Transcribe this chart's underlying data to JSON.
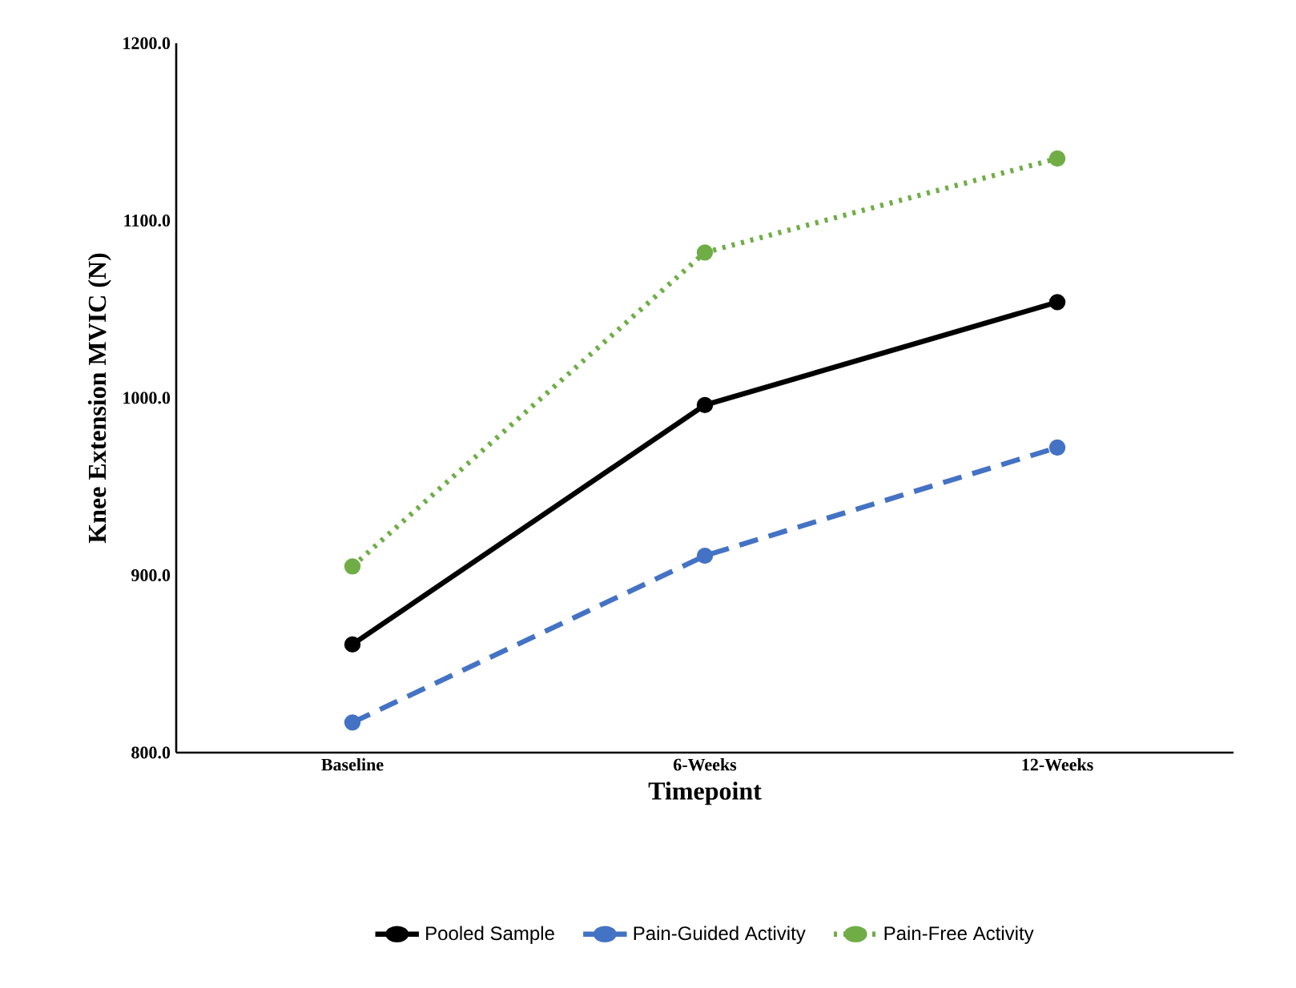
{
  "chart_data": {
    "type": "line",
    "xlabel": "Timepoint",
    "ylabel": "Knee Extension MVIC (N)",
    "categories": [
      "Baseline",
      "6-Weeks",
      "12-Weeks"
    ],
    "series": [
      {
        "name": "Pooled Sample",
        "color": "#000000",
        "line_style": "solid",
        "values": [
          861,
          996,
          1054
        ]
      },
      {
        "name": "Pain-Guided Activity",
        "color": "#4472c4",
        "line_style": "dashed",
        "values": [
          817,
          911,
          972
        ]
      },
      {
        "name": "Pain-Free Activity",
        "color": "#70ad47",
        "line_style": "dotted",
        "values": [
          905,
          1082,
          1135
        ]
      }
    ],
    "ylim": [
      800,
      1200
    ],
    "yticks": [
      {
        "value": 800,
        "label": "800.0"
      },
      {
        "value": 900,
        "label": "900.0"
      },
      {
        "value": 1000,
        "label": "1000.0"
      },
      {
        "value": 1100,
        "label": "1100.0"
      },
      {
        "value": 1200,
        "label": "1200.0"
      }
    ],
    "legend": "bottom",
    "marker": "circle"
  }
}
